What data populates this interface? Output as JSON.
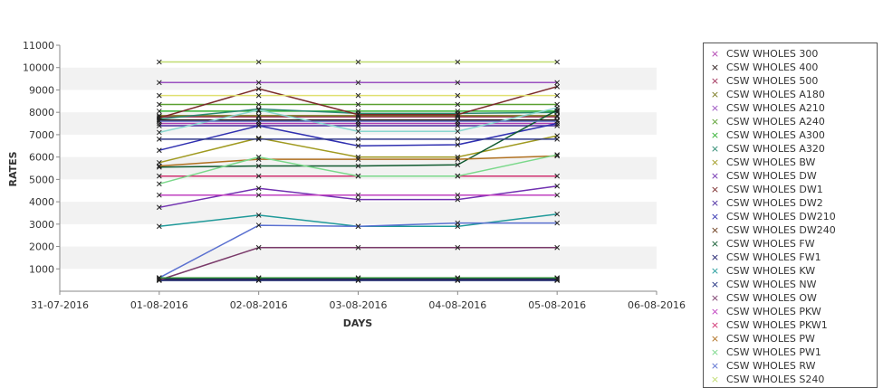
{
  "chart_data": {
    "type": "line",
    "xlabel": "DAYS",
    "ylabel": "RATES",
    "x_ticks": [
      "31-07-2016",
      "01-08-2016",
      "02-08-2016",
      "03-08-2016",
      "04-08-2016",
      "05-08-2016",
      "06-08-2016"
    ],
    "x": [
      "01-08-2016",
      "02-08-2016",
      "03-08-2016",
      "04-08-2016",
      "05-08-2016"
    ],
    "ylim": [
      0,
      11000
    ],
    "y_ticks": [
      1000,
      2000,
      3000,
      4000,
      5000,
      6000,
      7000,
      8000,
      9000,
      10000,
      11000
    ],
    "grid": "alternating horizontal bands",
    "legend_position": "right",
    "marker": "×",
    "series": [
      {
        "name": "CSW WHOLES 300",
        "color": "#b03fb0",
        "values": [
          7500,
          7500,
          7500,
          7500,
          7500
        ]
      },
      {
        "name": "CSW WHOLES 400",
        "color": "#2a1a1a",
        "values": [
          7650,
          7650,
          7650,
          7650,
          7650
        ]
      },
      {
        "name": "CSW WHOLES 500",
        "color": "#a0305a",
        "values": [
          7800,
          7800,
          7800,
          7800,
          7800
        ]
      },
      {
        "name": "CSW WHOLES A180",
        "color": "#7a7a20",
        "values": [
          7850,
          7850,
          7850,
          7850,
          7850
        ]
      },
      {
        "name": "CSW WHOLES A210",
        "color": "#9a50c0",
        "values": [
          9330,
          9330,
          9330,
          9330,
          9330
        ]
      },
      {
        "name": "CSW WHOLES A240",
        "color": "#5aa030",
        "values": [
          8350,
          8350,
          8350,
          8350,
          8350
        ]
      },
      {
        "name": "CSW WHOLES A300",
        "color": "#30b030",
        "values": [
          8050,
          8050,
          8050,
          8050,
          8050
        ]
      },
      {
        "name": "CSW WHOLES A320",
        "color": "#2a8a70",
        "values": [
          7700,
          8150,
          7950,
          7950,
          8000
        ]
      },
      {
        "name": "CSW WHOLES BW",
        "color": "#a09a20",
        "values": [
          5750,
          6850,
          6000,
          6000,
          6950
        ]
      },
      {
        "name": "CSW WHOLES DW",
        "color": "#7030b0",
        "values": [
          3750,
          4600,
          4100,
          4100,
          4700
        ]
      },
      {
        "name": "CSW WHOLES DW1",
        "color": "#7a2a2a",
        "values": [
          7750,
          9050,
          7900,
          7900,
          9150
        ]
      },
      {
        "name": "CSW WHOLES DW2",
        "color": "#4a2aa0",
        "values": [
          7400,
          7400,
          7400,
          7400,
          7400
        ]
      },
      {
        "name": "CSW WHOLES DW210",
        "color": "#3030b0",
        "values": [
          6300,
          7400,
          6500,
          6550,
          7500
        ]
      },
      {
        "name": "CSW WHOLES DW240",
        "color": "#6a3a1a",
        "values": [
          520,
          520,
          520,
          520,
          520
        ]
      },
      {
        "name": "CSW WHOLES FW",
        "color": "#105a30",
        "values": [
          5550,
          5600,
          5600,
          5650,
          8100
        ]
      },
      {
        "name": "CSW WHOLES FW1",
        "color": "#1a1a6a",
        "values": [
          560,
          560,
          560,
          560,
          560
        ]
      },
      {
        "name": "CSW WHOLES KW",
        "color": "#209a9a",
        "values": [
          2900,
          3400,
          2900,
          2900,
          3450
        ]
      },
      {
        "name": "CSW WHOLES NW",
        "color": "#203080",
        "values": [
          480,
          480,
          480,
          480,
          480
        ]
      },
      {
        "name": "CSW WHOLES OW",
        "color": "#7a3a6a",
        "values": [
          500,
          1950,
          1950,
          1950,
          1950
        ]
      },
      {
        "name": "CSW WHOLES PKW",
        "color": "#c040c0",
        "values": [
          4300,
          4300,
          4300,
          4300,
          4300
        ]
      },
      {
        "name": "CSW WHOLES PKW1",
        "color": "#d03070",
        "values": [
          5150,
          5150,
          5150,
          5150,
          5150
        ]
      },
      {
        "name": "CSW WHOLES PW",
        "color": "#b07020",
        "values": [
          5600,
          5900,
          5900,
          5900,
          6050
        ]
      },
      {
        "name": "CSW WHOLES PW1",
        "color": "#7ad88a",
        "values": [
          4800,
          6000,
          5150,
          5150,
          6100
        ]
      },
      {
        "name": "CSW WHOLES RW",
        "color": "#5a70d0",
        "values": [
          600,
          2950,
          2900,
          3050,
          3050
        ]
      },
      {
        "name": "CSW WHOLES S240",
        "color": "#c0dc70",
        "values": [
          10250,
          10250,
          10250,
          10250,
          10250
        ]
      },
      {
        "name": "",
        "color": "#8ad8d0",
        "values": [
          7100,
          8100,
          7150,
          7150,
          8200
        ],
        "in_legend": false
      },
      {
        "name": "",
        "color": "#e0e070",
        "values": [
          8750,
          8750,
          8750,
          8750,
          8750
        ],
        "in_legend": false
      },
      {
        "name": "",
        "color": "#6a7ad0",
        "values": [
          7600,
          7600,
          7600,
          7600,
          7600
        ],
        "in_legend": false
      },
      {
        "name": "",
        "color": "#303a8a",
        "values": [
          6800,
          6800,
          6800,
          6800,
          6800
        ],
        "in_legend": false
      },
      {
        "name": "",
        "color": "#2a8a30",
        "values": [
          600,
          600,
          600,
          600,
          600
        ],
        "in_legend": false
      }
    ]
  }
}
